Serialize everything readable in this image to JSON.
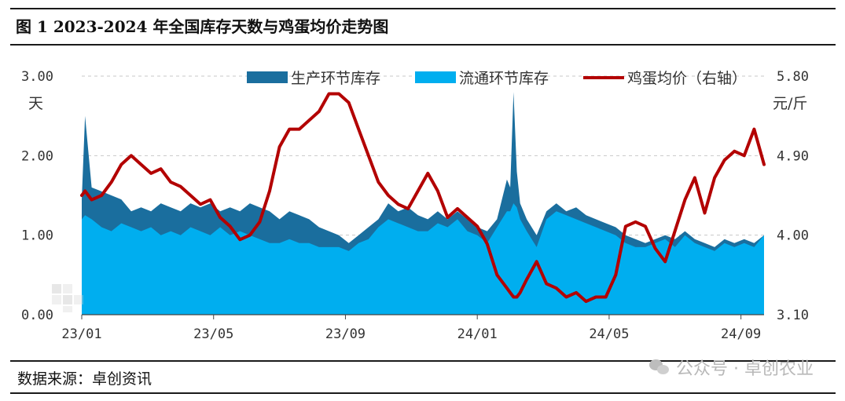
{
  "figure": {
    "title": "图 1 2023-2024 年全国库存天数与鸡蛋均价走势图",
    "source": "数据来源：卓创资讯",
    "watermark": "公众号 · 卓创农业"
  },
  "colors": {
    "production": "#1a6e9e",
    "circulation": "#00aeef",
    "price": "#b30000",
    "grid": "#c8c8c8"
  },
  "chart_data": {
    "type": "area",
    "title": "",
    "x_labels": [
      "23/01",
      "23/05",
      "23/09",
      "24/01",
      "24/05",
      "24/09"
    ],
    "x_label_months": [
      0,
      4,
      8,
      12,
      16,
      20
    ],
    "x_range_months": [
      0,
      20.7
    ],
    "left_axis": {
      "unit": "天",
      "min": 0,
      "max": 3,
      "ticks": [
        "0.00",
        "1.00",
        "2.00",
        "3.00"
      ]
    },
    "right_axis": {
      "unit": "元/斤",
      "min": 3.1,
      "max": 5.8,
      "ticks": [
        "3.10",
        "4.00",
        "4.90",
        "5.80"
      ]
    },
    "grid": "horizontal dashed",
    "legend_position": "top",
    "months": [
      0,
      0.1,
      0.3,
      0.6,
      0.9,
      1.2,
      1.5,
      1.8,
      2.1,
      2.4,
      2.7,
      3.0,
      3.3,
      3.6,
      3.9,
      4.2,
      4.5,
      4.8,
      5.1,
      5.4,
      5.7,
      6.0,
      6.3,
      6.6,
      6.9,
      7.2,
      7.5,
      7.8,
      8.1,
      8.4,
      8.7,
      9.0,
      9.3,
      9.6,
      9.9,
      10.2,
      10.5,
      10.8,
      11.1,
      11.4,
      11.7,
      12.0,
      12.3,
      12.6,
      12.9,
      13.0,
      13.1,
      13.2,
      13.3,
      13.5,
      13.8,
      14.1,
      14.4,
      14.7,
      15.0,
      15.3,
      15.6,
      15.9,
      16.2,
      16.5,
      16.8,
      17.1,
      17.4,
      17.7,
      18.0,
      18.3,
      18.6,
      18.9,
      19.2,
      19.5,
      19.8,
      20.1,
      20.4,
      20.7
    ],
    "series": [
      {
        "name": "生产环节库存",
        "kind": "stacked-area",
        "axis": "left",
        "values": [
          1.45,
          2.5,
          1.6,
          1.55,
          1.5,
          1.45,
          1.3,
          1.35,
          1.3,
          1.4,
          1.35,
          1.3,
          1.4,
          1.35,
          1.4,
          1.3,
          1.35,
          1.3,
          1.4,
          1.35,
          1.3,
          1.2,
          1.3,
          1.25,
          1.2,
          1.1,
          1.05,
          1.0,
          0.9,
          1.0,
          1.1,
          1.2,
          1.4,
          1.3,
          1.35,
          1.25,
          1.2,
          1.3,
          1.2,
          1.3,
          1.2,
          1.1,
          1.05,
          1.2,
          1.7,
          1.6,
          2.8,
          1.8,
          1.4,
          1.2,
          1.0,
          1.3,
          1.4,
          1.3,
          1.35,
          1.25,
          1.2,
          1.15,
          1.1,
          1.0,
          0.95,
          0.9,
          0.95,
          1.0,
          0.95,
          1.05,
          0.95,
          0.9,
          0.85,
          0.95,
          0.9,
          0.95,
          0.9,
          1.0
        ]
      },
      {
        "name": "流通环节库存",
        "kind": "stacked-area",
        "axis": "left",
        "values": [
          1.2,
          1.25,
          1.2,
          1.1,
          1.05,
          1.15,
          1.1,
          1.05,
          1.1,
          1.0,
          1.05,
          1.0,
          1.1,
          1.05,
          1.0,
          1.1,
          1.0,
          1.05,
          1.0,
          0.95,
          0.9,
          0.9,
          0.95,
          0.9,
          0.9,
          0.85,
          0.85,
          0.85,
          0.8,
          0.9,
          0.95,
          1.1,
          1.2,
          1.15,
          1.1,
          1.05,
          1.05,
          1.15,
          1.1,
          1.2,
          1.05,
          1.0,
          0.9,
          1.1,
          1.3,
          1.3,
          1.4,
          1.35,
          1.2,
          1.05,
          0.85,
          1.2,
          1.3,
          1.25,
          1.2,
          1.15,
          1.1,
          1.05,
          1.0,
          0.9,
          0.85,
          0.85,
          0.9,
          0.95,
          0.85,
          1.0,
          0.9,
          0.85,
          0.8,
          0.9,
          0.85,
          0.9,
          0.85,
          1.0
        ]
      },
      {
        "name": "鸡蛋均价（右轴）",
        "kind": "line",
        "axis": "right",
        "values": [
          4.45,
          4.5,
          4.4,
          4.45,
          4.6,
          4.8,
          4.9,
          4.8,
          4.7,
          4.75,
          4.6,
          4.55,
          4.45,
          4.35,
          4.4,
          4.2,
          4.1,
          3.95,
          4.0,
          4.15,
          4.5,
          5.0,
          5.2,
          5.2,
          5.3,
          5.4,
          5.6,
          5.6,
          5.5,
          5.2,
          4.9,
          4.6,
          4.45,
          4.35,
          4.3,
          4.5,
          4.7,
          4.5,
          4.2,
          4.3,
          4.2,
          4.1,
          3.9,
          3.55,
          3.4,
          3.35,
          3.3,
          3.3,
          3.35,
          3.5,
          3.7,
          3.45,
          3.4,
          3.3,
          3.35,
          3.25,
          3.3,
          3.3,
          3.55,
          4.1,
          4.15,
          4.1,
          3.85,
          3.7,
          4.05,
          4.4,
          4.65,
          4.25,
          4.65,
          4.85,
          4.95,
          4.9,
          5.2,
          4.8
        ]
      }
    ]
  }
}
